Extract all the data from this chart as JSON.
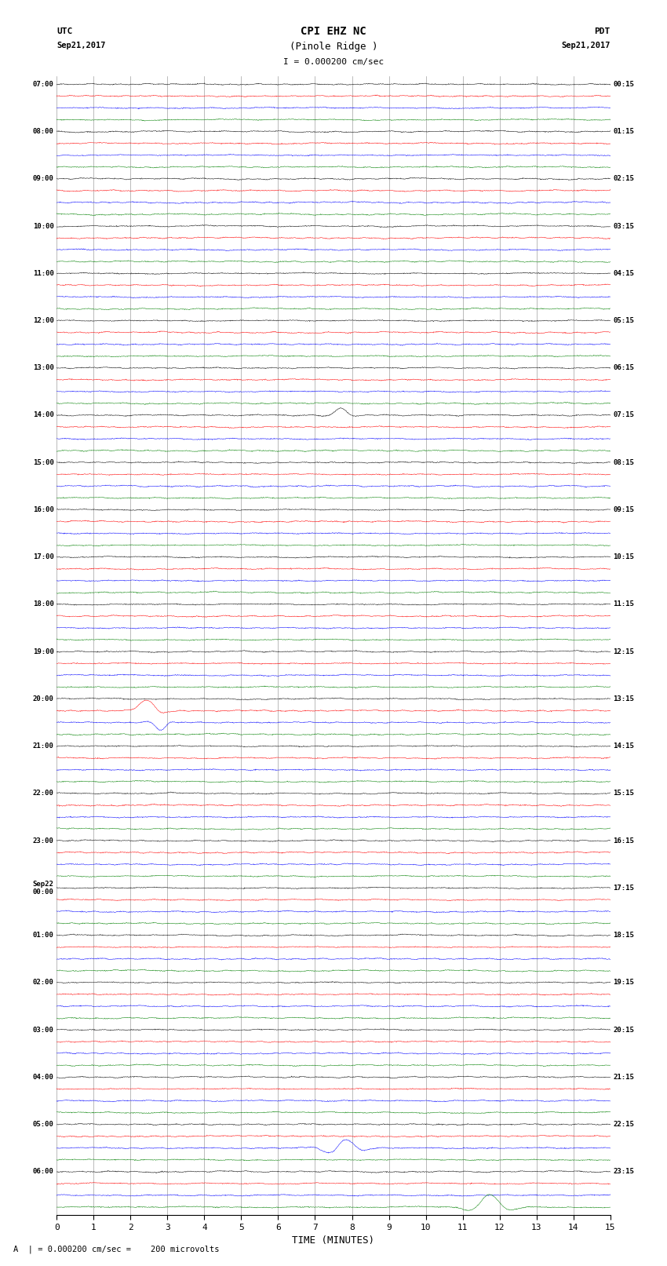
{
  "title_line1": "CPI EHZ NC",
  "title_line2": "(Pinole Ridge )",
  "scale_label": "I = 0.000200 cm/sec",
  "footer_label": "A  | = 0.000200 cm/sec =    200 microvolts",
  "xlabel": "TIME (MINUTES)",
  "left_times": [
    "07:00",
    "08:00",
    "09:00",
    "10:00",
    "11:00",
    "12:00",
    "13:00",
    "14:00",
    "15:00",
    "16:00",
    "17:00",
    "18:00",
    "19:00",
    "20:00",
    "21:00",
    "22:00",
    "23:00",
    "Sep22\n00:00",
    "01:00",
    "02:00",
    "03:00",
    "04:00",
    "05:00",
    "06:00"
  ],
  "right_times": [
    "00:15",
    "01:15",
    "02:15",
    "03:15",
    "04:15",
    "05:15",
    "06:15",
    "07:15",
    "08:15",
    "09:15",
    "10:15",
    "11:15",
    "12:15",
    "13:15",
    "14:15",
    "15:15",
    "16:15",
    "17:15",
    "18:15",
    "19:15",
    "20:15",
    "21:15",
    "22:15",
    "23:15"
  ],
  "n_hours": 24,
  "traces_per_hour": 4,
  "colors": [
    "black",
    "red",
    "blue",
    "green"
  ],
  "bg_color": "white",
  "noise_std": 0.06,
  "xmin": 0,
  "xmax": 15,
  "seed": 12345
}
